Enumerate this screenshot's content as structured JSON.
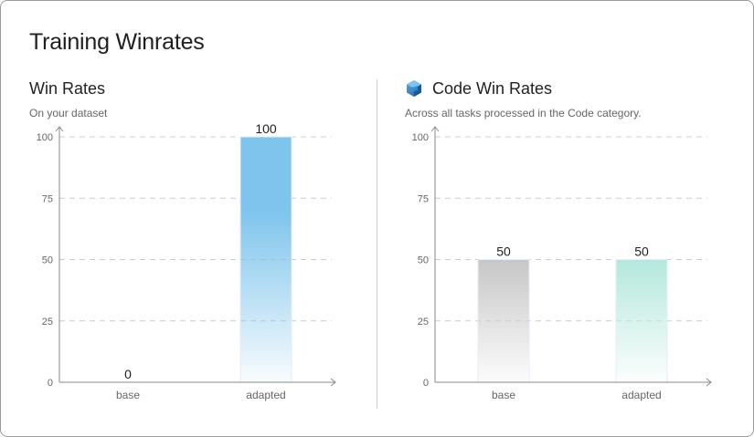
{
  "page": {
    "title": "Training Winrates"
  },
  "panels": [
    {
      "title": "Win Rates",
      "subtitle": "On your dataset"
    },
    {
      "title": "Code Win Rates",
      "subtitle": "Across all tasks processed in the Code category.",
      "icon": "code-cube-icon"
    }
  ],
  "colors": {
    "adapted_left_top": "#7ec4ec",
    "base_right_top": "#c7c7c7",
    "adapted_right_top": "#b4e8dc",
    "grid": "#cccccc",
    "axis": "#888888"
  },
  "chart_data": [
    {
      "type": "bar",
      "categories": [
        "base",
        "adapted"
      ],
      "values": [
        0,
        100
      ],
      "ylim": [
        0,
        100
      ],
      "yticks": [
        0,
        25,
        50,
        75,
        100
      ],
      "grid": true
    },
    {
      "type": "bar",
      "categories": [
        "base",
        "adapted"
      ],
      "values": [
        50,
        50
      ],
      "ylim": [
        0,
        100
      ],
      "yticks": [
        0,
        25,
        50,
        75,
        100
      ],
      "grid": true
    }
  ]
}
